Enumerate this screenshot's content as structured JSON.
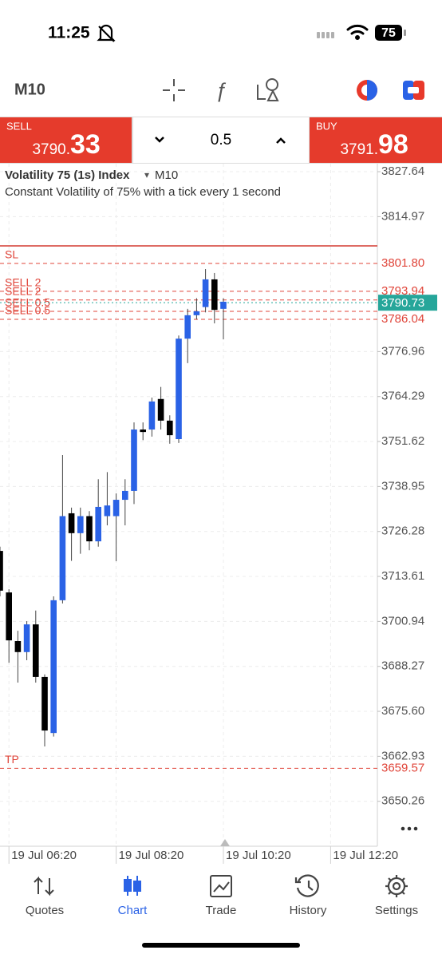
{
  "status_bar": {
    "time": "11:25",
    "battery": "75"
  },
  "toolbar": {
    "timeframe": "M10"
  },
  "trade_panel": {
    "sell": {
      "label": "SELL",
      "price_main": "3790.",
      "price_big": "33"
    },
    "volume": "0.5",
    "buy": {
      "label": "BUY",
      "price_main": "3791.",
      "price_big": "98"
    }
  },
  "chart_data": {
    "type": "candlestick",
    "title": "Volatility 75 (1s) Index",
    "title_arrow": "▾",
    "timeframe": "M10",
    "subtitle": "Constant Volatility of 75% with a tick every 1 second",
    "up_color": "#2a62e6",
    "down_color": "#000000",
    "grid": true,
    "categories": [
      null,
      "19 Jul 06:20",
      null,
      null,
      null,
      null,
      null,
      null,
      null,
      null,
      null,
      null,
      null,
      "19 Jul 08:20",
      null,
      null,
      null,
      null,
      null,
      null,
      null,
      null,
      null,
      null,
      null,
      "19 Jul 10:20",
      null,
      null,
      null,
      null,
      null,
      null,
      null,
      null,
      null,
      null,
      null,
      "19 Jul 12:20",
      null,
      null,
      null,
      null
    ],
    "open": [
      3720.8,
      3709.1,
      3695.4,
      3692.3,
      3700.1,
      3685.3,
      3669.5,
      3706.9,
      3731.4,
      3725.8,
      3730.6,
      3723.5,
      3730.6,
      3730.6,
      3735.2,
      3737.7,
      3755.0,
      3755.0,
      3763.6,
      3757.5,
      3752.3,
      3780.6,
      3787.2,
      3789.5,
      3797.3,
      3789.0,
      null,
      null,
      null,
      null,
      null,
      null,
      null,
      null,
      null,
      null,
      null,
      null,
      null,
      null,
      null,
      null
    ],
    "high": [
      3722.0,
      3710.0,
      3698.3,
      3701.0,
      3704.0,
      3686.0,
      3708.0,
      3747.8,
      3733.0,
      3733.0,
      3732.0,
      3741.0,
      3743.0,
      3737.0,
      3741.0,
      3757.0,
      3757.0,
      3764.0,
      3767.0,
      3759.0,
      3781.5,
      3789.0,
      3792.0,
      3800.2,
      3799.1,
      3792.0,
      null,
      null,
      null,
      null,
      null,
      null,
      null,
      null,
      null,
      null,
      null,
      null,
      null,
      null,
      null,
      null
    ],
    "low": [
      3708.0,
      3689.3,
      3683.7,
      3690.0,
      3683.7,
      3665.7,
      3668.5,
      3706.0,
      3718.0,
      3720.0,
      3721.0,
      3722.0,
      3728.0,
      3717.9,
      3728.0,
      3734.0,
      3752.0,
      3753.0,
      3755.0,
      3751.0,
      3751.2,
      3773.7,
      3786.0,
      3788.0,
      3784.9,
      3780.4,
      null,
      null,
      null,
      null,
      null,
      null,
      null,
      null,
      null,
      null,
      null,
      null,
      null,
      null,
      null,
      null
    ],
    "close": [
      3709.6,
      3695.6,
      3692.3,
      3700.1,
      3685.3,
      3670.2,
      3706.9,
      3730.6,
      3725.8,
      3730.6,
      3723.5,
      3733.2,
      3733.6,
      3735.2,
      3737.7,
      3755.0,
      3754.3,
      3762.9,
      3757.5,
      3753.4,
      3780.6,
      3787.2,
      3788.3,
      3797.3,
      3788.7,
      3791.0,
      null,
      null,
      null,
      null,
      null,
      null,
      null,
      null,
      null,
      null,
      null,
      null,
      null,
      null,
      null,
      null
    ],
    "ylim": [
      3637.6,
      3829.9
    ],
    "yticks": [
      3827.64,
      3814.97,
      3776.96,
      3764.29,
      3751.62,
      3738.95,
      3726.28,
      3713.61,
      3700.94,
      3688.27,
      {
        "value": 3675.6,
        "label": "3675.60"
      },
      3662.93,
      3650.26
    ],
    "levels": [
      {
        "label": "SL",
        "value": 3801.8,
        "price_label": "3801.80"
      },
      {
        "label": "SELL 2",
        "value": 3793.94,
        "price_label": "3793.94"
      },
      {
        "label": "SELL 2",
        "value": 3791.5
      },
      {
        "label": "SELL 0.5",
        "value": 3788.3
      },
      {
        "label": "SELL 0.5",
        "value": 3786.04,
        "price_label": "3786.04"
      },
      {
        "label": "TP",
        "value": 3659.57,
        "price_label": "3659.57"
      }
    ],
    "level_color": "#e0453a",
    "current_price": 3790.73,
    "current_price_color": "#26a69a"
  },
  "nav": {
    "active": 1,
    "items": [
      {
        "label": "Quotes"
      },
      {
        "label": "Chart"
      },
      {
        "label": "Trade"
      },
      {
        "label": "History"
      },
      {
        "label": "Settings"
      }
    ]
  }
}
